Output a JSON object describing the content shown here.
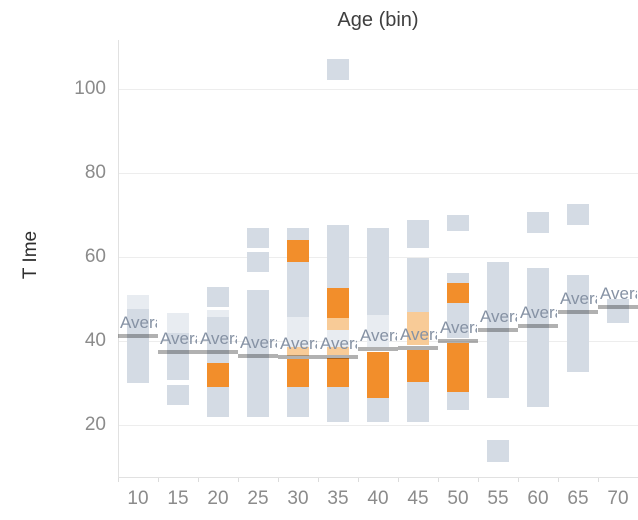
{
  "title": "Age (bin)",
  "y_axis": {
    "label": "T Ime",
    "ticks": [
      20,
      40,
      60,
      80,
      100
    ]
  },
  "x_axis": {
    "ticks": [
      "10",
      "15",
      "20",
      "25",
      "30",
      "35",
      "40",
      "45",
      "50",
      "55",
      "60",
      "65",
      "70"
    ]
  },
  "average_label": "Average",
  "colors": {
    "gray": "#d4dbe4",
    "gray_light": "#e8ecf1",
    "orange": "#f28e2b",
    "orange_light": "#f8cb97",
    "avg_line": "#b1b1b1",
    "avg_label_text": "#8692a4",
    "tick_label": "#8b8b8b",
    "title_text": "#3f3f3f",
    "gridline": "#ededed"
  },
  "chart_data": {
    "type": "bar",
    "subtype": "binned column distribution of stacked square marks with highlighted (orange) selection and per-bin average reference lines",
    "xlabel": "Age (bin)",
    "ylabel": "T Ime",
    "ylim_visible": [
      7.6,
      111.6
    ],
    "grid": "horizontal",
    "legend": "none",
    "bins": [
      {
        "x": "10",
        "average": 41.2,
        "segments": [
          {
            "lo": 47.6,
            "hi": 51.0,
            "shade": "gray_light"
          },
          {
            "lo": 30.0,
            "hi": 47.6,
            "shade": "gray"
          }
        ]
      },
      {
        "x": "15",
        "average": 37.4,
        "segments": [
          {
            "lo": 41.9,
            "hi": 46.7,
            "shade": "gray_light"
          },
          {
            "lo": 30.7,
            "hi": 41.9,
            "shade": "gray"
          },
          {
            "lo": 24.8,
            "hi": 29.5,
            "shade": "gray"
          }
        ]
      },
      {
        "x": "20",
        "average": 37.3,
        "segments": [
          {
            "lo": 48.1,
            "hi": 52.9,
            "shade": "gray"
          },
          {
            "lo": 45.7,
            "hi": 47.4,
            "shade": "gray_light"
          },
          {
            "lo": 34.8,
            "hi": 45.7,
            "shade": "gray"
          },
          {
            "lo": 29.0,
            "hi": 34.8,
            "shade": "orange"
          },
          {
            "lo": 21.9,
            "hi": 29.0,
            "shade": "gray"
          }
        ]
      },
      {
        "x": "25",
        "average": 36.5,
        "segments": [
          {
            "lo": 62.1,
            "hi": 66.9,
            "shade": "gray"
          },
          {
            "lo": 56.4,
            "hi": 61.2,
            "shade": "gray"
          },
          {
            "lo": 21.9,
            "hi": 52.1,
            "shade": "gray"
          }
        ]
      },
      {
        "x": "30",
        "average": 36.3,
        "segments": [
          {
            "lo": 64.0,
            "hi": 66.9,
            "shade": "gray"
          },
          {
            "lo": 58.8,
            "hi": 64.0,
            "shade": "orange"
          },
          {
            "lo": 45.7,
            "hi": 58.8,
            "shade": "gray"
          },
          {
            "lo": 38.6,
            "hi": 45.7,
            "shade": "gray_light"
          },
          {
            "lo": 36.4,
            "hi": 38.6,
            "shade": "orange_light"
          },
          {
            "lo": 29.0,
            "hi": 35.7,
            "shade": "orange"
          },
          {
            "lo": 21.9,
            "hi": 29.0,
            "shade": "gray"
          }
        ]
      },
      {
        "x": "35",
        "average": 36.2,
        "segments": [
          {
            "lo": 102.1,
            "hi": 107.1,
            "shade": "gray"
          },
          {
            "lo": 52.6,
            "hi": 67.6,
            "shade": "gray"
          },
          {
            "lo": 45.5,
            "hi": 52.6,
            "shade": "orange"
          },
          {
            "lo": 42.6,
            "hi": 45.5,
            "shade": "orange_light"
          },
          {
            "lo": 38.6,
            "hi": 42.6,
            "shade": "gray_light"
          },
          {
            "lo": 36.7,
            "hi": 38.6,
            "shade": "orange_light"
          },
          {
            "lo": 29.0,
            "hi": 36.0,
            "shade": "orange"
          },
          {
            "lo": 20.7,
            "hi": 29.0,
            "shade": "gray"
          }
        ]
      },
      {
        "x": "40",
        "average": 38.0,
        "segments": [
          {
            "lo": 46.2,
            "hi": 66.9,
            "shade": "gray"
          },
          {
            "lo": 38.6,
            "hi": 46.2,
            "shade": "gray_light"
          },
          {
            "lo": 26.4,
            "hi": 37.4,
            "shade": "orange"
          },
          {
            "lo": 20.7,
            "hi": 26.4,
            "shade": "gray"
          }
        ]
      },
      {
        "x": "45",
        "average": 38.4,
        "segments": [
          {
            "lo": 62.1,
            "hi": 68.8,
            "shade": "gray"
          },
          {
            "lo": 46.9,
            "hi": 59.8,
            "shade": "gray"
          },
          {
            "lo": 39.0,
            "hi": 46.9,
            "shade": "orange_light"
          },
          {
            "lo": 30.2,
            "hi": 37.9,
            "shade": "orange"
          },
          {
            "lo": 20.7,
            "hi": 30.2,
            "shade": "gray"
          }
        ]
      },
      {
        "x": "50",
        "average": 40.1,
        "segments": [
          {
            "lo": 66.2,
            "hi": 70.0,
            "shade": "gray"
          },
          {
            "lo": 53.8,
            "hi": 56.2,
            "shade": "gray"
          },
          {
            "lo": 49.0,
            "hi": 53.8,
            "shade": "orange"
          },
          {
            "lo": 40.7,
            "hi": 49.0,
            "shade": "gray"
          },
          {
            "lo": 27.9,
            "hi": 39.5,
            "shade": "orange"
          },
          {
            "lo": 23.6,
            "hi": 27.9,
            "shade": "gray"
          }
        ]
      },
      {
        "x": "55",
        "average": 42.7,
        "segments": [
          {
            "lo": 26.4,
            "hi": 58.8,
            "shade": "gray"
          },
          {
            "lo": 11.2,
            "hi": 16.4,
            "shade": "gray"
          }
        ]
      },
      {
        "x": "60",
        "average": 43.5,
        "segments": [
          {
            "lo": 65.7,
            "hi": 70.7,
            "shade": "gray"
          },
          {
            "lo": 24.3,
            "hi": 57.4,
            "shade": "gray"
          }
        ]
      },
      {
        "x": "65",
        "average": 47.0,
        "segments": [
          {
            "lo": 67.6,
            "hi": 72.6,
            "shade": "gray"
          },
          {
            "lo": 32.6,
            "hi": 55.7,
            "shade": "gray"
          }
        ]
      },
      {
        "x": "70",
        "average": 48.0,
        "segments": [
          {
            "lo": 44.3,
            "hi": 50.0,
            "shade": "gray"
          }
        ]
      }
    ]
  }
}
